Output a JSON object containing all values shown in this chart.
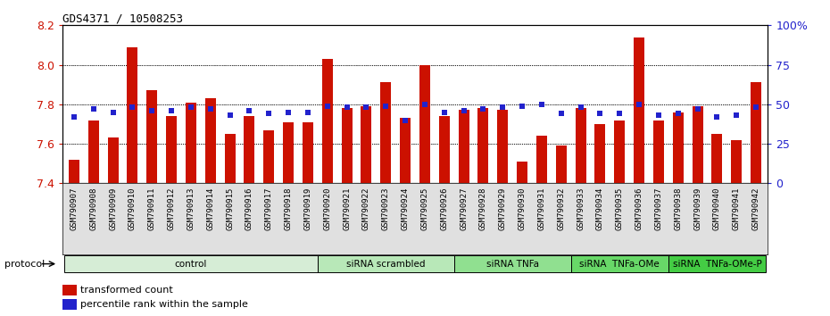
{
  "title": "GDS4371 / 10508253",
  "samples": [
    "GSM790907",
    "GSM790908",
    "GSM790909",
    "GSM790910",
    "GSM790911",
    "GSM790912",
    "GSM790913",
    "GSM790914",
    "GSM790915",
    "GSM790916",
    "GSM790917",
    "GSM790918",
    "GSM790919",
    "GSM790920",
    "GSM790921",
    "GSM790922",
    "GSM790923",
    "GSM790924",
    "GSM790925",
    "GSM790926",
    "GSM790927",
    "GSM790928",
    "GSM790929",
    "GSM790930",
    "GSM790931",
    "GSM790932",
    "GSM790933",
    "GSM790934",
    "GSM790935",
    "GSM790936",
    "GSM790937",
    "GSM790938",
    "GSM790939",
    "GSM790940",
    "GSM790941",
    "GSM790942"
  ],
  "bar_values": [
    7.52,
    7.72,
    7.63,
    8.09,
    7.87,
    7.74,
    7.81,
    7.83,
    7.65,
    7.74,
    7.67,
    7.71,
    7.71,
    8.03,
    7.78,
    7.79,
    7.91,
    7.73,
    8.0,
    7.74,
    7.77,
    7.78,
    7.77,
    7.51,
    7.64,
    7.59,
    7.78,
    7.7,
    7.72,
    8.14,
    7.72,
    7.76,
    7.79,
    7.65,
    7.62,
    7.91
  ],
  "percentile_values": [
    42,
    47,
    45,
    48,
    46,
    46,
    48,
    47,
    43,
    46,
    44,
    45,
    45,
    49,
    48,
    48,
    49,
    40,
    50,
    45,
    46,
    47,
    48,
    49,
    50,
    44,
    48,
    44,
    44,
    50,
    43,
    44,
    47,
    42,
    43,
    48
  ],
  "groups": [
    {
      "label": "control",
      "start": 0,
      "end": 13,
      "color": "#d6edd6"
    },
    {
      "label": "siRNA scrambled",
      "start": 13,
      "end": 20,
      "color": "#b8e8b8"
    },
    {
      "label": "siRNA TNFa",
      "start": 20,
      "end": 26,
      "color": "#90e090"
    },
    {
      "label": "siRNA  TNFa-OMe",
      "start": 26,
      "end": 31,
      "color": "#68d868"
    },
    {
      "label": "siRNA  TNFa-OMe-P",
      "start": 31,
      "end": 36,
      "color": "#44cc44"
    }
  ],
  "ylim_left": [
    7.4,
    8.2
  ],
  "ylim_right": [
    0,
    100
  ],
  "yticks_left": [
    7.4,
    7.6,
    7.8,
    8.0,
    8.2
  ],
  "yticks_right": [
    0,
    25,
    50,
    75,
    100
  ],
  "ytick_labels_right": [
    "0",
    "25",
    "50",
    "75",
    "100%"
  ],
  "bar_color": "#cc1100",
  "blue_color": "#2222cc",
  "bar_width": 0.55,
  "grid_color": "black",
  "bg_color": "#ffffff",
  "protocol_label": "protocol",
  "legend1": "transformed count",
  "legend2": "percentile rank within the sample"
}
